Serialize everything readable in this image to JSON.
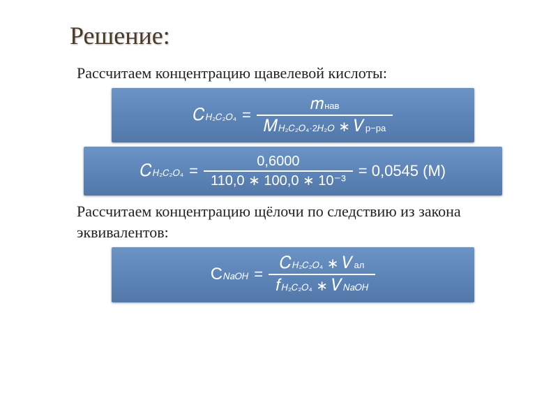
{
  "colors": {
    "title_color": "#4a3a28",
    "text_color": "#222222",
    "box_bg_top": "#6b93c4",
    "box_bg_bottom": "#5278a9",
    "box_text": "#ffffff",
    "page_bg": "#ffffff"
  },
  "typography": {
    "title_fontsize": 36,
    "body_fontsize": 22,
    "formula_fontsize": 22,
    "sub_fontsize": 13
  },
  "title": "Решение:",
  "para1": "Рассчитаем концентрацию щавелевой кислоты:",
  "para2": "Рассчитаем концентрацию щёлочи по следствию из закона эквивалентов:",
  "eq1": {
    "lhs_var": "𝐶",
    "lhs_sub": "𝐻₂𝐶₂𝑂₄",
    "num": "𝑚",
    "num_sub": "нав",
    "den_left": "𝑀",
    "den_left_sub": "𝐻₂𝐶₂𝑂₄·2𝐻₂𝑂",
    "den_op": " ∗ ",
    "den_right": "𝑉",
    "den_right_sub": "р−ра"
  },
  "eq2": {
    "lhs_var": "𝐶",
    "lhs_sub": "𝐻₂𝐶₂𝑂₄",
    "num": "0,6000",
    "den": "110,0 ∗ 100,0 ∗ 10⁻³",
    "result": "= 0,0545 (М)"
  },
  "eq3": {
    "lhs_var": "С",
    "lhs_sub": "𝑁𝑎𝑂𝐻",
    "num_left": "𝐶",
    "num_left_sub": "𝐻₂𝐶₂𝑂₄",
    "op": " ∗ ",
    "num_right": "𝑉",
    "num_right_sub": "ал",
    "den_left": "𝑓",
    "den_left_sub": "𝐻₂𝐶₂𝑂₄",
    "den_right": "𝑉",
    "den_right_sub": "𝑁𝑎𝑂𝐻"
  }
}
